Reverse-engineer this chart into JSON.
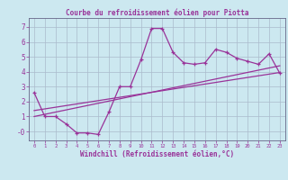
{
  "title": "Courbe du refroidissement éolien pour Piotta",
  "xlabel": "Windchill (Refroidissement éolien,°C)",
  "bg_color": "#cce8f0",
  "line_color": "#993399",
  "grid_color": "#aabbcc",
  "hours": [
    0,
    1,
    2,
    3,
    4,
    5,
    6,
    7,
    8,
    9,
    10,
    11,
    12,
    13,
    14,
    15,
    16,
    17,
    18,
    19,
    20,
    21,
    22,
    23
  ],
  "main_data": [
    2.6,
    1.0,
    1.0,
    0.5,
    -0.1,
    -0.1,
    -0.2,
    1.3,
    3.0,
    3.0,
    4.8,
    6.9,
    6.9,
    5.3,
    4.6,
    4.5,
    4.6,
    5.5,
    5.3,
    4.9,
    4.7,
    4.5,
    5.2,
    3.9
  ],
  "trend1_x": [
    0,
    23
  ],
  "trend1_y": [
    1.0,
    4.4
  ],
  "trend2_x": [
    0,
    23
  ],
  "trend2_y": [
    1.4,
    3.95
  ],
  "xlim": [
    -0.5,
    23.5
  ],
  "ylim": [
    -0.6,
    7.6
  ],
  "yticks": [
    0,
    1,
    2,
    3,
    4,
    5,
    6,
    7
  ],
  "ytick_labels": [
    "-0",
    "1",
    "2",
    "3",
    "4",
    "5",
    "6",
    "7"
  ]
}
